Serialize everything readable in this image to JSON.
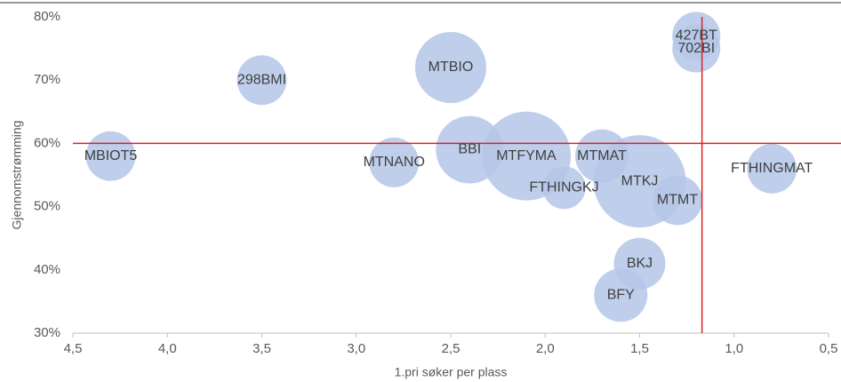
{
  "chart_data": {
    "type": "bubble",
    "x_label": "1.pri søker per plass",
    "y_label": "Gjennomstrømming",
    "x": [
      4.3,
      3.5,
      2.5,
      1.2,
      1.2,
      2.8,
      2.4,
      2.1,
      1.7,
      1.9,
      1.5,
      1.3,
      0.8,
      1.5,
      1.6
    ],
    "series": [
      {
        "color": "#b4c6e7",
        "labels": [
          "MBIOT5",
          "298BMI",
          "MTBIO",
          "427BT",
          "702BI",
          "MTNANO",
          "BBI",
          "MTFYMA",
          "MTMAT",
          "FTHINGKJ",
          "MTKJ",
          "MTMT",
          "FTHINGMAT",
          "BKJ",
          "BFY"
        ],
        "values": [
          58,
          70,
          72,
          77,
          75,
          57,
          59,
          58,
          58,
          53,
          54,
          51,
          56,
          41,
          36
        ],
        "sizes": [
          78,
          78,
          160,
          73,
          73,
          78,
          144,
          250,
          90,
          58,
          270,
          78,
          78,
          84,
          90
        ]
      }
    ],
    "xlim": [
      4.5,
      0.5
    ],
    "ylim": [
      30,
      80
    ],
    "xticks": [
      {
        "value": 4.5,
        "label": "4,5"
      },
      {
        "value": 4.0,
        "label": "4,0"
      },
      {
        "value": 3.5,
        "label": "3,5"
      },
      {
        "value": 3.0,
        "label": "3,0"
      },
      {
        "value": 2.5,
        "label": "2,5"
      },
      {
        "value": 2.0,
        "label": "2,0"
      },
      {
        "value": 1.5,
        "label": "1,5"
      },
      {
        "value": 1.0,
        "label": "1,0"
      },
      {
        "value": 0.5,
        "label": "0,5"
      }
    ],
    "yticks": [
      {
        "value": 30,
        "label": "30%"
      },
      {
        "value": 40,
        "label": "40%"
      },
      {
        "value": 50,
        "label": "50%"
      },
      {
        "value": 60,
        "label": "60%"
      },
      {
        "value": 70,
        "label": "70%"
      },
      {
        "value": 80,
        "label": "80%"
      }
    ],
    "reference_lines": {
      "x": 1.17,
      "y": 60,
      "color": "#e02020"
    }
  }
}
